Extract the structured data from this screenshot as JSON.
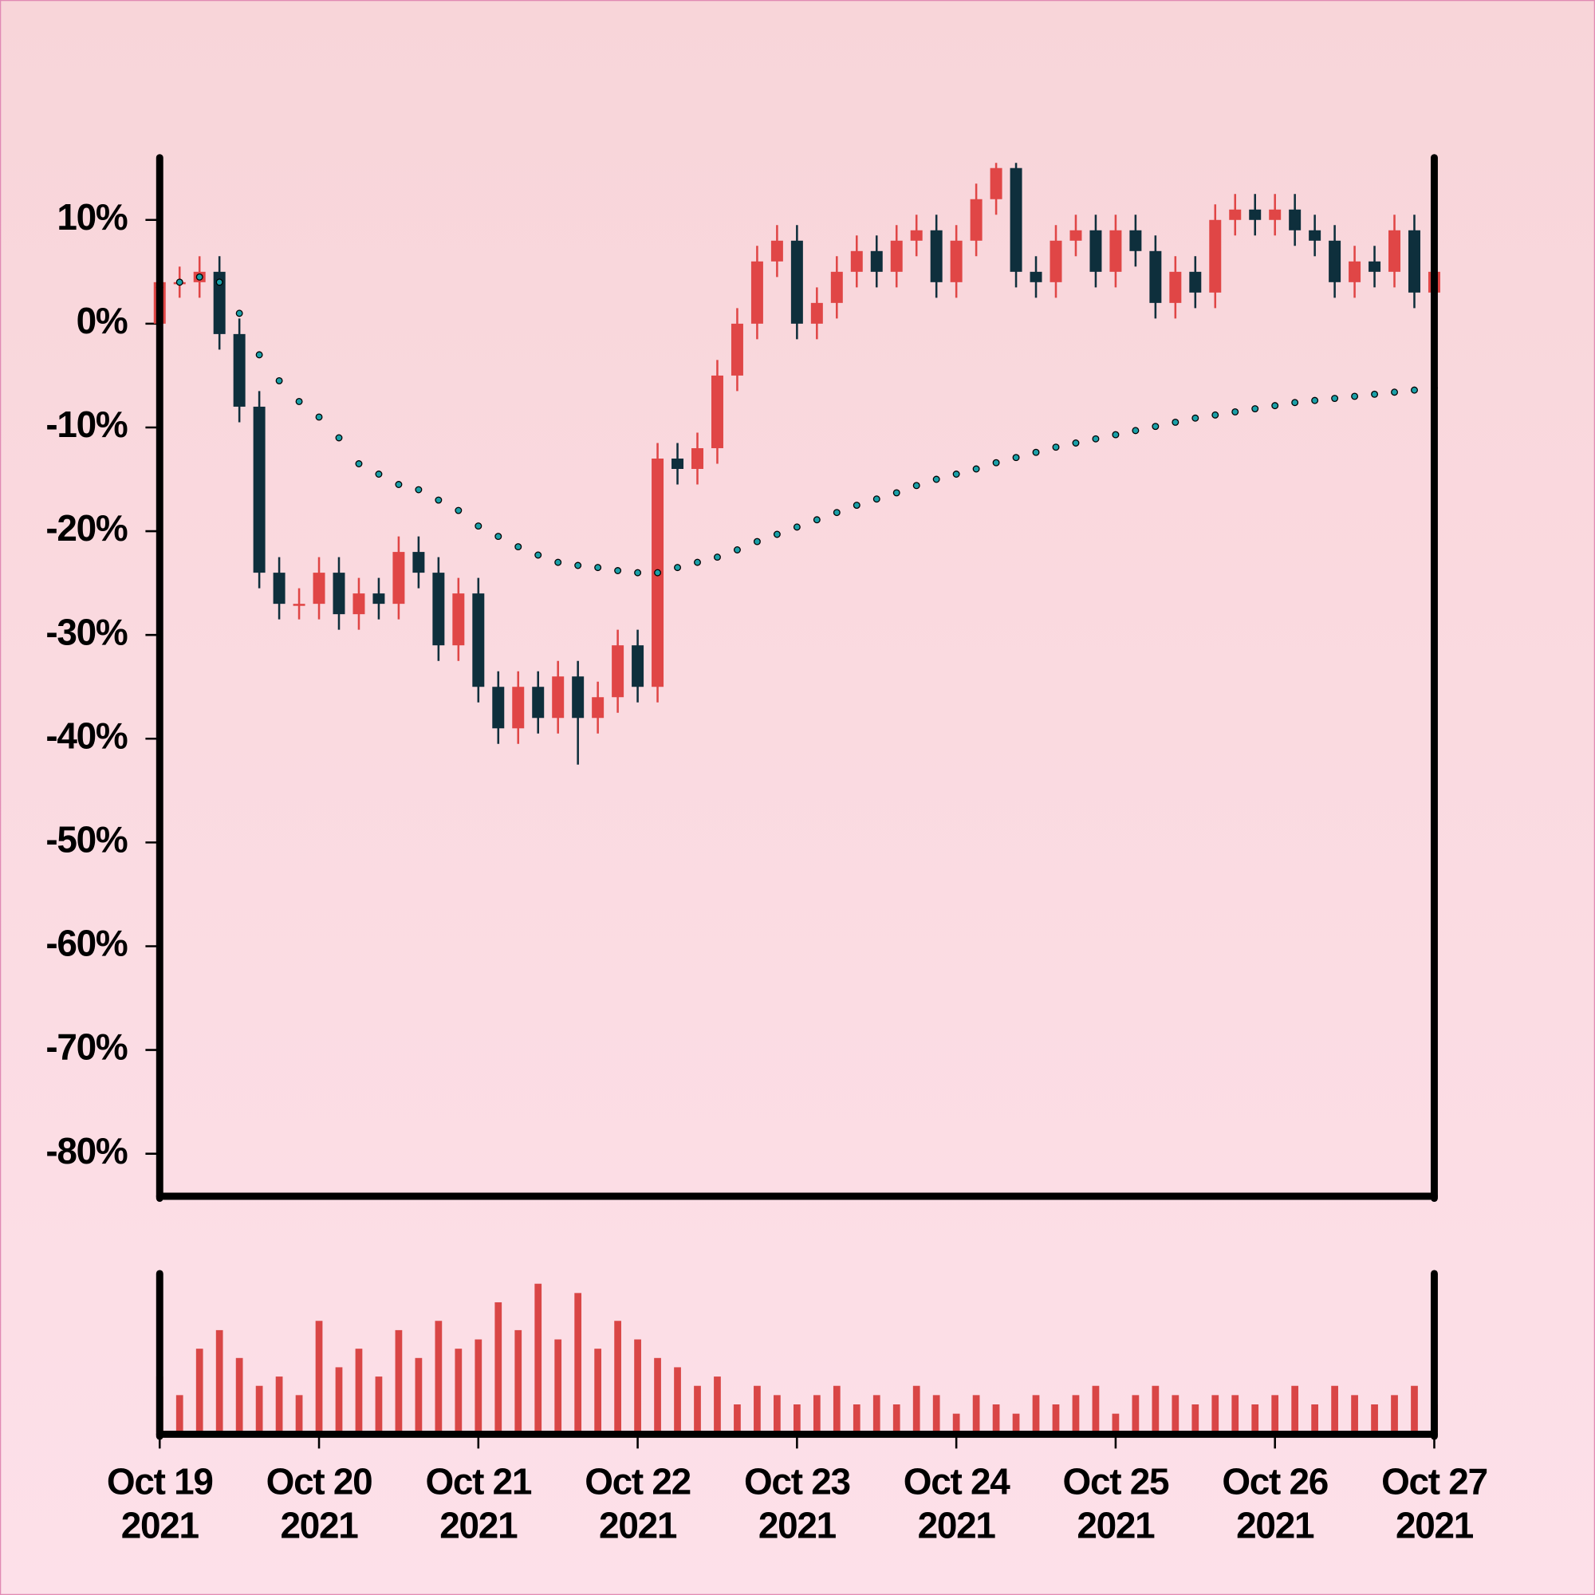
{
  "chart_data": {
    "type": "candlestick",
    "categories": [
      "Oct 19\n2021",
      null,
      null,
      null,
      null,
      null,
      null,
      null,
      "Oct 20\n2021",
      null,
      null,
      null,
      null,
      null,
      null,
      null,
      "Oct 21\n2021",
      null,
      null,
      null,
      null,
      null,
      null,
      null,
      "Oct 22\n2021",
      null,
      null,
      null,
      null,
      null,
      null,
      null,
      "Oct 23\n2021",
      null,
      null,
      null,
      null,
      null,
      null,
      null,
      "Oct 24\n2021",
      null,
      null,
      null,
      null,
      null,
      null,
      null,
      "Oct 25\n2021",
      null,
      null,
      null,
      null,
      null,
      null,
      null,
      "Oct 26\n2021",
      null,
      null,
      null,
      null,
      null,
      null,
      null,
      "Oct 27\n2021"
    ],
    "open": [
      0,
      4,
      4,
      5,
      -1,
      -8,
      -24,
      -27,
      -27,
      -24,
      -28,
      -26,
      -27,
      -22,
      -24,
      -31,
      -26,
      -35,
      -39,
      -35,
      -38,
      -34,
      -38,
      -36,
      -31,
      -35,
      -13,
      -14,
      -12,
      -5,
      0,
      6,
      8,
      0,
      2,
      5,
      7,
      5,
      8,
      9,
      4,
      8,
      12,
      15,
      5,
      4,
      8,
      9,
      5,
      9,
      7,
      2,
      5,
      3,
      10,
      11,
      10,
      11,
      9,
      8,
      4,
      6,
      5,
      9,
      3
    ],
    "high": [
      5.5,
      5.5,
      6.5,
      6.5,
      0.5,
      -6.5,
      -22.5,
      -25.5,
      -22.5,
      -22.5,
      -24.5,
      -24.5,
      -20.5,
      -20.5,
      -22.5,
      -24.5,
      -24.5,
      -33.5,
      -33.5,
      -33.5,
      -32.5,
      -32.5,
      -34.5,
      -29.5,
      -29.5,
      -11.5,
      -11.5,
      -10.5,
      -3.5,
      1.5,
      7.5,
      9.5,
      9.5,
      3.5,
      6.5,
      8.5,
      8.5,
      9.5,
      10.5,
      10.5,
      9.5,
      13.5,
      15.5,
      15.5,
      6.5,
      9.5,
      10.5,
      10.5,
      10.5,
      10.5,
      8.5,
      6.5,
      6.5,
      11.5,
      12.5,
      12.5,
      12.5,
      12.5,
      10.5,
      9.5,
      7.5,
      7.5,
      10.5,
      10.5,
      6.5
    ],
    "low": [
      -1.5,
      2.5,
      2.5,
      -2.5,
      -9.5,
      -25.5,
      -28.5,
      -28.5,
      -28.5,
      -29.5,
      -29.5,
      -28.5,
      -28.5,
      -25.5,
      -32.5,
      -32.5,
      -36.5,
      -40.5,
      -40.5,
      -39.5,
      -39.5,
      -42.5,
      -39.5,
      -37.5,
      -36.5,
      -36.5,
      -15.5,
      -15.5,
      -13.5,
      -6.5,
      -1.5,
      4.5,
      -1.5,
      -1.5,
      0.5,
      3.5,
      3.5,
      3.5,
      6.5,
      2.5,
      2.5,
      6.5,
      10.5,
      3.5,
      2.5,
      2.5,
      6.5,
      3.5,
      3.5,
      5.5,
      0.5,
      0.5,
      1.5,
      1.5,
      8.5,
      8.5,
      8.5,
      7.5,
      6.5,
      2.5,
      2.5,
      3.5,
      3.5,
      1.5,
      1.5
    ],
    "close": [
      4,
      4,
      5,
      -1,
      -8,
      -24,
      -27,
      -27,
      -24,
      -28,
      -26,
      -27,
      -22,
      -24,
      -31,
      -26,
      -35,
      -39,
      -35,
      -38,
      -34,
      -38,
      -36,
      -31,
      -35,
      -13,
      -14,
      -12,
      -5,
      0,
      6,
      8,
      0,
      2,
      5,
      7,
      5,
      8,
      9,
      4,
      8,
      12,
      15,
      5,
      4,
      8,
      9,
      5,
      9,
      7,
      2,
      5,
      3,
      10,
      11,
      10,
      11,
      9,
      8,
      4,
      6,
      5,
      9,
      3,
      5
    ],
    "up_color": "#e04646",
    "down_color": "#0e2f3c",
    "ylim": [
      -84,
      16
    ],
    "yticks": [
      {
        "value": 10,
        "label": "10%"
      },
      {
        "value": 0,
        "label": "0%"
      },
      {
        "value": -10,
        "label": "-10%"
      },
      {
        "value": -20,
        "label": "-20%"
      },
      {
        "value": -30,
        "label": "-30%"
      },
      {
        "value": -40,
        "label": "-40%"
      },
      {
        "value": -50,
        "label": "-50%"
      },
      {
        "value": -60,
        "label": "-60%"
      },
      {
        "value": -70,
        "label": "-70%"
      },
      {
        "value": -80,
        "label": "-80%"
      }
    ],
    "moving_average": {
      "color": "#1aa0a8",
      "values": [
        3.5,
        4,
        4.5,
        4,
        1,
        -3,
        -5.5,
        -7.5,
        -9,
        -11,
        -13.5,
        -14.5,
        -15.5,
        -16,
        -17,
        -18,
        -19.5,
        -20.5,
        -21.5,
        -22.3,
        -23,
        -23.3,
        -23.5,
        -23.8,
        -24,
        -24,
        -23.5,
        -23,
        -22.5,
        -21.8,
        -21,
        -20.3,
        -19.6,
        -18.9,
        -18.2,
        -17.5,
        -16.9,
        -16.3,
        -15.6,
        -15,
        -14.5,
        -14,
        -13.4,
        -12.9,
        -12.4,
        -11.9,
        -11.5,
        -11.1,
        -10.7,
        -10.3,
        -9.9,
        -9.5,
        -9.1,
        -8.8,
        -8.5,
        -8.2,
        -7.9,
        -7.6,
        -7.4,
        -7.2,
        -7,
        -6.8,
        -6.6,
        -6.4,
        -6.2
      ]
    },
    "volume": {
      "color": "#d94646",
      "values": [
        30,
        20,
        45,
        55,
        40,
        25,
        30,
        20,
        60,
        35,
        45,
        30,
        55,
        40,
        60,
        45,
        50,
        70,
        55,
        80,
        50,
        75,
        45,
        60,
        50,
        40,
        35,
        25,
        30,
        15,
        25,
        20,
        15,
        20,
        25,
        15,
        20,
        15,
        25,
        20,
        10,
        20,
        15,
        10,
        20,
        15,
        20,
        25,
        10,
        20,
        25,
        20,
        15,
        20,
        20,
        15,
        20,
        25,
        15,
        25,
        20,
        15,
        20,
        25,
        15
      ]
    }
  }
}
